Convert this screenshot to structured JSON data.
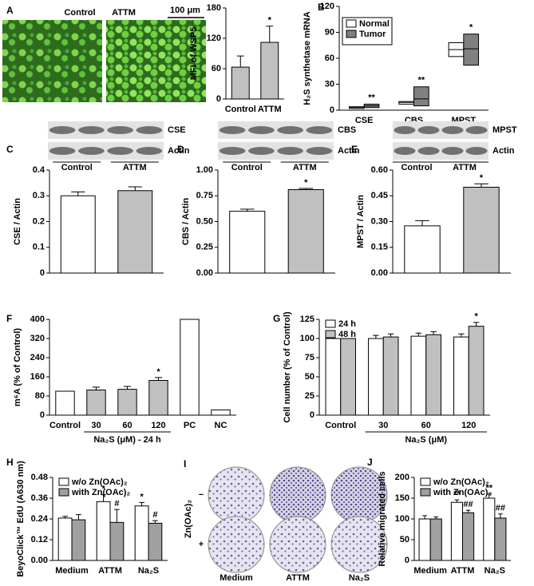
{
  "chart_data": [
    {
      "type": "bar",
      "panel": "A",
      "ylabel": "MFI of WSP5",
      "categories": [
        "Control",
        "ATTM"
      ],
      "series": [
        {
          "colors": [
            "#c0c0c0",
            "#c0c0c0"
          ],
          "values": [
            63,
            112
          ],
          "errors": [
            22,
            32
          ],
          "marks": [
            null,
            "*"
          ]
        }
      ],
      "ylim": [
        0,
        180
      ],
      "yticks": [
        0,
        60,
        120,
        180
      ]
    },
    {
      "type": "box",
      "panel": "B",
      "ylabel": "H₂S synthetase mRNA",
      "categories": [
        "CSE",
        "CBS",
        "MPST"
      ],
      "legend": "upper left",
      "series": [
        {
          "name": "Normal",
          "color": "#ffffff",
          "values": [
            {
              "q1": 2,
              "median": 3,
              "q3": 4
            },
            {
              "q1": 7,
              "median": 9,
              "q3": 10
            },
            {
              "q1": 62,
              "median": 70,
              "q3": 78
            }
          ]
        },
        {
          "name": "Tumor",
          "color": "#808080",
          "values": [
            {
              "q1": 3,
              "median": 5,
              "q3": 7
            },
            {
              "q1": 5,
              "median": 13,
              "q3": 27
            },
            {
              "q1": 52,
              "median": 71,
              "q3": 88
            }
          ],
          "marks": [
            "**",
            "**",
            "*"
          ]
        }
      ],
      "ylim": [
        0,
        120
      ],
      "yticks": [
        0,
        30,
        60,
        90,
        120
      ]
    },
    {
      "type": "bar",
      "panel": "C",
      "ylabel": "CSE / Actin",
      "blot_labels": [
        "CSE",
        "Actin"
      ],
      "blot_groups": [
        "Control",
        "ATTM"
      ],
      "categories": [
        "Control",
        "ATTM"
      ],
      "series": [
        {
          "colors": [
            "#ffffff",
            "#c0c0c0"
          ],
          "values": [
            0.3,
            0.32
          ],
          "errors": [
            0.015,
            0.015
          ],
          "marks": [
            null,
            null
          ]
        }
      ],
      "ylim": [
        0,
        0.4
      ],
      "yticks": [
        0,
        0.1,
        0.2,
        0.3,
        0.4
      ],
      "hide_categories": true
    },
    {
      "type": "bar",
      "panel": "D",
      "ylabel": "CBS / Actin",
      "blot_labels": [
        "CBS",
        "Actin"
      ],
      "blot_groups": [
        "Control",
        "ATTM"
      ],
      "categories": [
        "Control",
        "ATTM"
      ],
      "series": [
        {
          "colors": [
            "#ffffff",
            "#c0c0c0"
          ],
          "values": [
            0.6,
            0.81
          ],
          "errors": [
            0.02,
            0.012
          ],
          "marks": [
            null,
            "*"
          ]
        }
      ],
      "ylim": [
        0,
        1
      ],
      "yticks": [
        {
          "value": 0,
          "label": "0.00"
        },
        0.25,
        {
          "value": 0.5,
          "label": "0.50"
        },
        0.75,
        {
          "value": 1,
          "label": "1.00"
        }
      ],
      "hide_categories": true
    },
    {
      "type": "bar",
      "panel": "E",
      "ylabel": "MPST / Actin",
      "blot_labels": [
        "MPST",
        "Actin"
      ],
      "blot_groups": [
        "Control",
        "ATTM"
      ],
      "categories": [
        "Control",
        "ATTM"
      ],
      "series": [
        {
          "colors": [
            "#ffffff",
            "#c0c0c0"
          ],
          "values": [
            0.275,
            0.5
          ],
          "errors": [
            0.03,
            0.02
          ],
          "marks": [
            null,
            "*"
          ]
        }
      ],
      "ylim": [
        0,
        0.6
      ],
      "yticks": [
        {
          "value": 0,
          "label": "0.00"
        },
        0.15,
        {
          "value": 0.3,
          "label": "0.30"
        },
        0.45,
        {
          "value": 0.6,
          "label": "0.60"
        }
      ],
      "hide_categories": true
    },
    {
      "type": "bar",
      "panel": "F",
      "ylabel": "m⁶A (% of Control)",
      "xlabel": "Na₂S (μM) - 24 h",
      "categories": [
        "Control",
        "30",
        "60",
        "120",
        "PC",
        "NC"
      ],
      "series": [
        {
          "colors": [
            "#ffffff",
            "#c0c0c0",
            "#c0c0c0",
            "#c0c0c0",
            "#ffffff",
            "#ffffff"
          ],
          "values": [
            100,
            105,
            108,
            145,
            400,
            22
          ],
          "errors": [
            null,
            12,
            12,
            12,
            null,
            null
          ],
          "marks": [
            null,
            null,
            null,
            "*",
            null,
            null
          ]
        }
      ],
      "ylim": [
        0,
        400
      ],
      "yticks": [
        0,
        80,
        160,
        240,
        320,
        400
      ]
    },
    {
      "type": "bar",
      "panel": "G",
      "ylabel": "Cell number (% of Control)",
      "xlabel": "Na₂S (μM)",
      "categories": [
        "Control",
        "30",
        "60",
        "120"
      ],
      "legend": "upper left",
      "series": [
        {
          "name": "24 h",
          "color": "#ffffff",
          "values": [
            100,
            100,
            103,
            102
          ],
          "errors": [
            null,
            4,
            4,
            4
          ]
        },
        {
          "name": "48 h",
          "color": "#c0c0c0",
          "values": [
            100,
            102,
            105,
            116
          ],
          "errors": [
            null,
            4,
            4,
            5
          ],
          "marks": [
            null,
            null,
            null,
            "*"
          ]
        }
      ],
      "ylim": [
        0,
        125
      ],
      "yticks": [
        0,
        25,
        50,
        75,
        100,
        125
      ]
    },
    {
      "type": "bar",
      "panel": "H",
      "ylabel": "BeyoClick™ EdU (A630 nm)",
      "categories": [
        "Medium",
        "ATTM",
        "Na₂S"
      ],
      "legend": "upper left",
      "series": [
        {
          "name": "w/o Zn(OAc)₂",
          "color": "#ffffff",
          "values": [
            0.245,
            0.34,
            0.315
          ],
          "errors": [
            0.01,
            0.04,
            0.02
          ],
          "marks": [
            null,
            "*",
            "*"
          ]
        },
        {
          "name": "with Zn(OAc)₂",
          "color": "#a0a0a0",
          "values": [
            0.235,
            0.22,
            0.215
          ],
          "errors": [
            0.03,
            0.075,
            0.015
          ],
          "marks": [
            null,
            "#",
            "#"
          ]
        }
      ],
      "ylim": [
        0,
        0.48
      ],
      "yticks": [
        {
          "value": 0,
          "label": "0.00"
        },
        0.12,
        0.24,
        0.36,
        0.48
      ]
    },
    {
      "type": "bar",
      "panel": "J",
      "ylabel": "Relative migrated cells",
      "categories": [
        "Medium",
        "ATTM",
        "Na₂S"
      ],
      "legend": "upper left",
      "series": [
        {
          "name": "w/o Zn(OAc)₂",
          "color": "#ffffff",
          "values": [
            100,
            140,
            150
          ],
          "errors": [
            8,
            6,
            10
          ],
          "marks": [
            null,
            "**",
            "**"
          ]
        },
        {
          "name": "with Zn(OAc)₂",
          "color": "#a0a0a0",
          "values": [
            100,
            115,
            102
          ],
          "errors": [
            5,
            6,
            10
          ],
          "marks": [
            null,
            "##",
            "##"
          ]
        }
      ],
      "ylim": [
        0,
        200
      ],
      "yticks": [
        0,
        50,
        100,
        150,
        200
      ]
    }
  ],
  "micrographs": {
    "labels": [
      "Control",
      "ATTM"
    ],
    "scale_bar": "100 μm"
  },
  "transwell": {
    "panel": "I",
    "row_label": "Zn(OAc)₂",
    "rows": [
      "−",
      "+"
    ],
    "columns": [
      "Medium",
      "ATTM",
      "Na₂S"
    ]
  }
}
